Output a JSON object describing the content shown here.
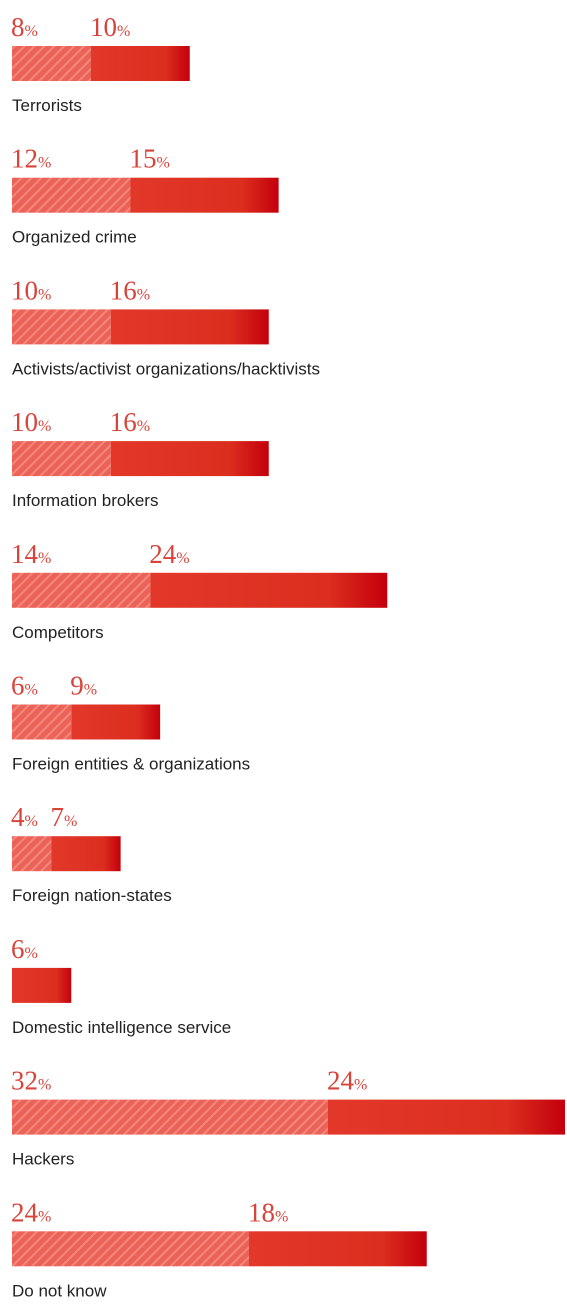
{
  "chart_data": {
    "type": "stacked-bar-horizontal",
    "categories": [
      "Terrorists",
      "Organized crime",
      "Activists/activist organizations/hacktivists",
      "Information brokers",
      "Competitors",
      "Foreign entities & organizations",
      "Foreign nation-states",
      "Domestic intelligence service",
      "Hackers",
      "Do not know"
    ],
    "series": [
      {
        "color": "#ee6a5e",
        "pattern": "hatch",
        "values": [
          8,
          12,
          10,
          10,
          14,
          6,
          4,
          null,
          32,
          24
        ],
        "value_labels": [
          "8%",
          "12%",
          "10%",
          "10%",
          "14%",
          "6%",
          "4%",
          null,
          "32%",
          "24%"
        ]
      },
      {
        "color": "#e0301f",
        "pattern": "gradient",
        "values": [
          10,
          15,
          16,
          16,
          24,
          9,
          7,
          6,
          24,
          18
        ],
        "value_labels": [
          "10%",
          "15%",
          "16%",
          "16%",
          "24%",
          "9%",
          "7%",
          "6%",
          "24%",
          "18%"
        ]
      }
    ]
  }
}
